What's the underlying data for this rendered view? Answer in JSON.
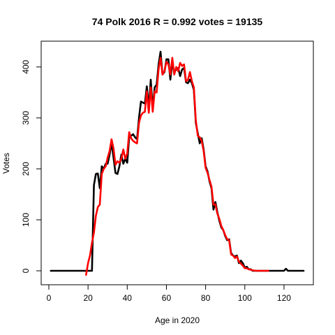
{
  "chart_data": {
    "type": "line",
    "title": "74 Polk 2016 R = 0.992 votes = 19135",
    "xlabel": "Age in 2020",
    "ylabel": "Votes",
    "xlim": [
      0,
      130
    ],
    "ylim": [
      0,
      430
    ],
    "x_ticks": [
      0,
      20,
      40,
      60,
      80,
      100,
      120
    ],
    "y_ticks": [
      0,
      100,
      200,
      300,
      400
    ],
    "grid": false,
    "legend": "none",
    "series": [
      {
        "color": "#000000",
        "points": [
          [
            1,
            0
          ],
          [
            5,
            0
          ],
          [
            10,
            0
          ],
          [
            15,
            0
          ],
          [
            20,
            0
          ],
          [
            22,
            0
          ],
          [
            23,
            168
          ],
          [
            24,
            190
          ],
          [
            25,
            191
          ],
          [
            26,
            162
          ],
          [
            27,
            205
          ],
          [
            28,
            200
          ],
          [
            29,
            210
          ],
          [
            30,
            210
          ],
          [
            31,
            228
          ],
          [
            32,
            251
          ],
          [
            33,
            222
          ],
          [
            34,
            192
          ],
          [
            35,
            190
          ],
          [
            36,
            205
          ],
          [
            37,
            228
          ],
          [
            38,
            210
          ],
          [
            39,
            220
          ],
          [
            40,
            212
          ],
          [
            41,
            262
          ],
          [
            42,
            265
          ],
          [
            43,
            268
          ],
          [
            44,
            262
          ],
          [
            45,
            258
          ],
          [
            46,
            300
          ],
          [
            47,
            332
          ],
          [
            48,
            330
          ],
          [
            49,
            328
          ],
          [
            50,
            362
          ],
          [
            51,
            320
          ],
          [
            52,
            375
          ],
          [
            53,
            318
          ],
          [
            54,
            360
          ],
          [
            55,
            365
          ],
          [
            56,
            405
          ],
          [
            57,
            430
          ],
          [
            58,
            385
          ],
          [
            59,
            390
          ],
          [
            60,
            415
          ],
          [
            61,
            415
          ],
          [
            62,
            375
          ],
          [
            63,
            408
          ],
          [
            64,
            390
          ],
          [
            65,
            395
          ],
          [
            66,
            398
          ],
          [
            67,
            382
          ],
          [
            68,
            395
          ],
          [
            69,
            398
          ],
          [
            70,
            370
          ],
          [
            71,
            368
          ],
          [
            72,
            375
          ],
          [
            73,
            368
          ],
          [
            74,
            355
          ],
          [
            75,
            290
          ],
          [
            76,
            270
          ],
          [
            77,
            250
          ],
          [
            78,
            260
          ],
          [
            79,
            238
          ],
          [
            80,
            205
          ],
          [
            81,
            195
          ],
          [
            82,
            175
          ],
          [
            83,
            162
          ],
          [
            84,
            120
          ],
          [
            85,
            135
          ],
          [
            86,
            115
          ],
          [
            87,
            98
          ],
          [
            88,
            85
          ],
          [
            89,
            80
          ],
          [
            90,
            68
          ],
          [
            91,
            60
          ],
          [
            92,
            62
          ],
          [
            93,
            35
          ],
          [
            94,
            30
          ],
          [
            95,
            28
          ],
          [
            96,
            30
          ],
          [
            97,
            15
          ],
          [
            98,
            20
          ],
          [
            99,
            15
          ],
          [
            100,
            6
          ],
          [
            101,
            8
          ],
          [
            102,
            3
          ],
          [
            103,
            3
          ],
          [
            104,
            0
          ],
          [
            105,
            0
          ],
          [
            106,
            0
          ],
          [
            107,
            0
          ],
          [
            110,
            0
          ],
          [
            115,
            0
          ],
          [
            120,
            0
          ],
          [
            121,
            4
          ],
          [
            122,
            0
          ],
          [
            125,
            0
          ],
          [
            130,
            0
          ]
        ]
      },
      {
        "color": "#ff0000",
        "points": [
          [
            19,
            -8
          ],
          [
            20,
            15
          ],
          [
            21,
            30
          ],
          [
            22,
            55
          ],
          [
            23,
            75
          ],
          [
            24,
            108
          ],
          [
            25,
            125
          ],
          [
            26,
            130
          ],
          [
            27,
            190
          ],
          [
            28,
            200
          ],
          [
            29,
            205
          ],
          [
            30,
            222
          ],
          [
            31,
            235
          ],
          [
            32,
            258
          ],
          [
            33,
            240
          ],
          [
            34,
            208
          ],
          [
            35,
            215
          ],
          [
            36,
            212
          ],
          [
            37,
            220
          ],
          [
            38,
            238
          ],
          [
            39,
            220
          ],
          [
            40,
            230
          ],
          [
            41,
            272
          ],
          [
            42,
            260
          ],
          [
            43,
            255
          ],
          [
            44,
            252
          ],
          [
            45,
            250
          ],
          [
            46,
            290
          ],
          [
            47,
            305
          ],
          [
            48,
            310
          ],
          [
            49,
            312
          ],
          [
            50,
            352
          ],
          [
            51,
            310
          ],
          [
            52,
            360
          ],
          [
            53,
            312
          ],
          [
            54,
            352
          ],
          [
            55,
            350
          ],
          [
            56,
            395
          ],
          [
            57,
            418
          ],
          [
            58,
            385
          ],
          [
            59,
            392
          ],
          [
            60,
            410
          ],
          [
            61,
            405
          ],
          [
            62,
            385
          ],
          [
            63,
            418
          ],
          [
            64,
            385
          ],
          [
            65,
            400
          ],
          [
            66,
            392
          ],
          [
            67,
            408
          ],
          [
            68,
            402
          ],
          [
            69,
            405
          ],
          [
            70,
            372
          ],
          [
            71,
            375
          ],
          [
            72,
            390
          ],
          [
            73,
            372
          ],
          [
            74,
            360
          ],
          [
            75,
            295
          ],
          [
            76,
            265
          ],
          [
            77,
            262
          ],
          [
            78,
            255
          ],
          [
            79,
            235
          ],
          [
            80,
            202
          ],
          [
            81,
            192
          ],
          [
            82,
            178
          ],
          [
            83,
            165
          ],
          [
            84,
            130
          ],
          [
            85,
            130
          ],
          [
            86,
            112
          ],
          [
            87,
            102
          ],
          [
            88,
            88
          ],
          [
            89,
            80
          ],
          [
            90,
            70
          ],
          [
            91,
            62
          ],
          [
            92,
            60
          ],
          [
            93,
            32
          ],
          [
            94,
            30
          ],
          [
            95,
            25
          ],
          [
            96,
            28
          ],
          [
            97,
            18
          ],
          [
            98,
            14
          ],
          [
            99,
            10
          ],
          [
            100,
            5
          ],
          [
            101,
            5
          ],
          [
            102,
            3
          ],
          [
            103,
            2
          ],
          [
            104,
            1
          ],
          [
            106,
            0
          ],
          [
            110,
            0
          ],
          [
            112,
            0
          ]
        ]
      }
    ]
  }
}
